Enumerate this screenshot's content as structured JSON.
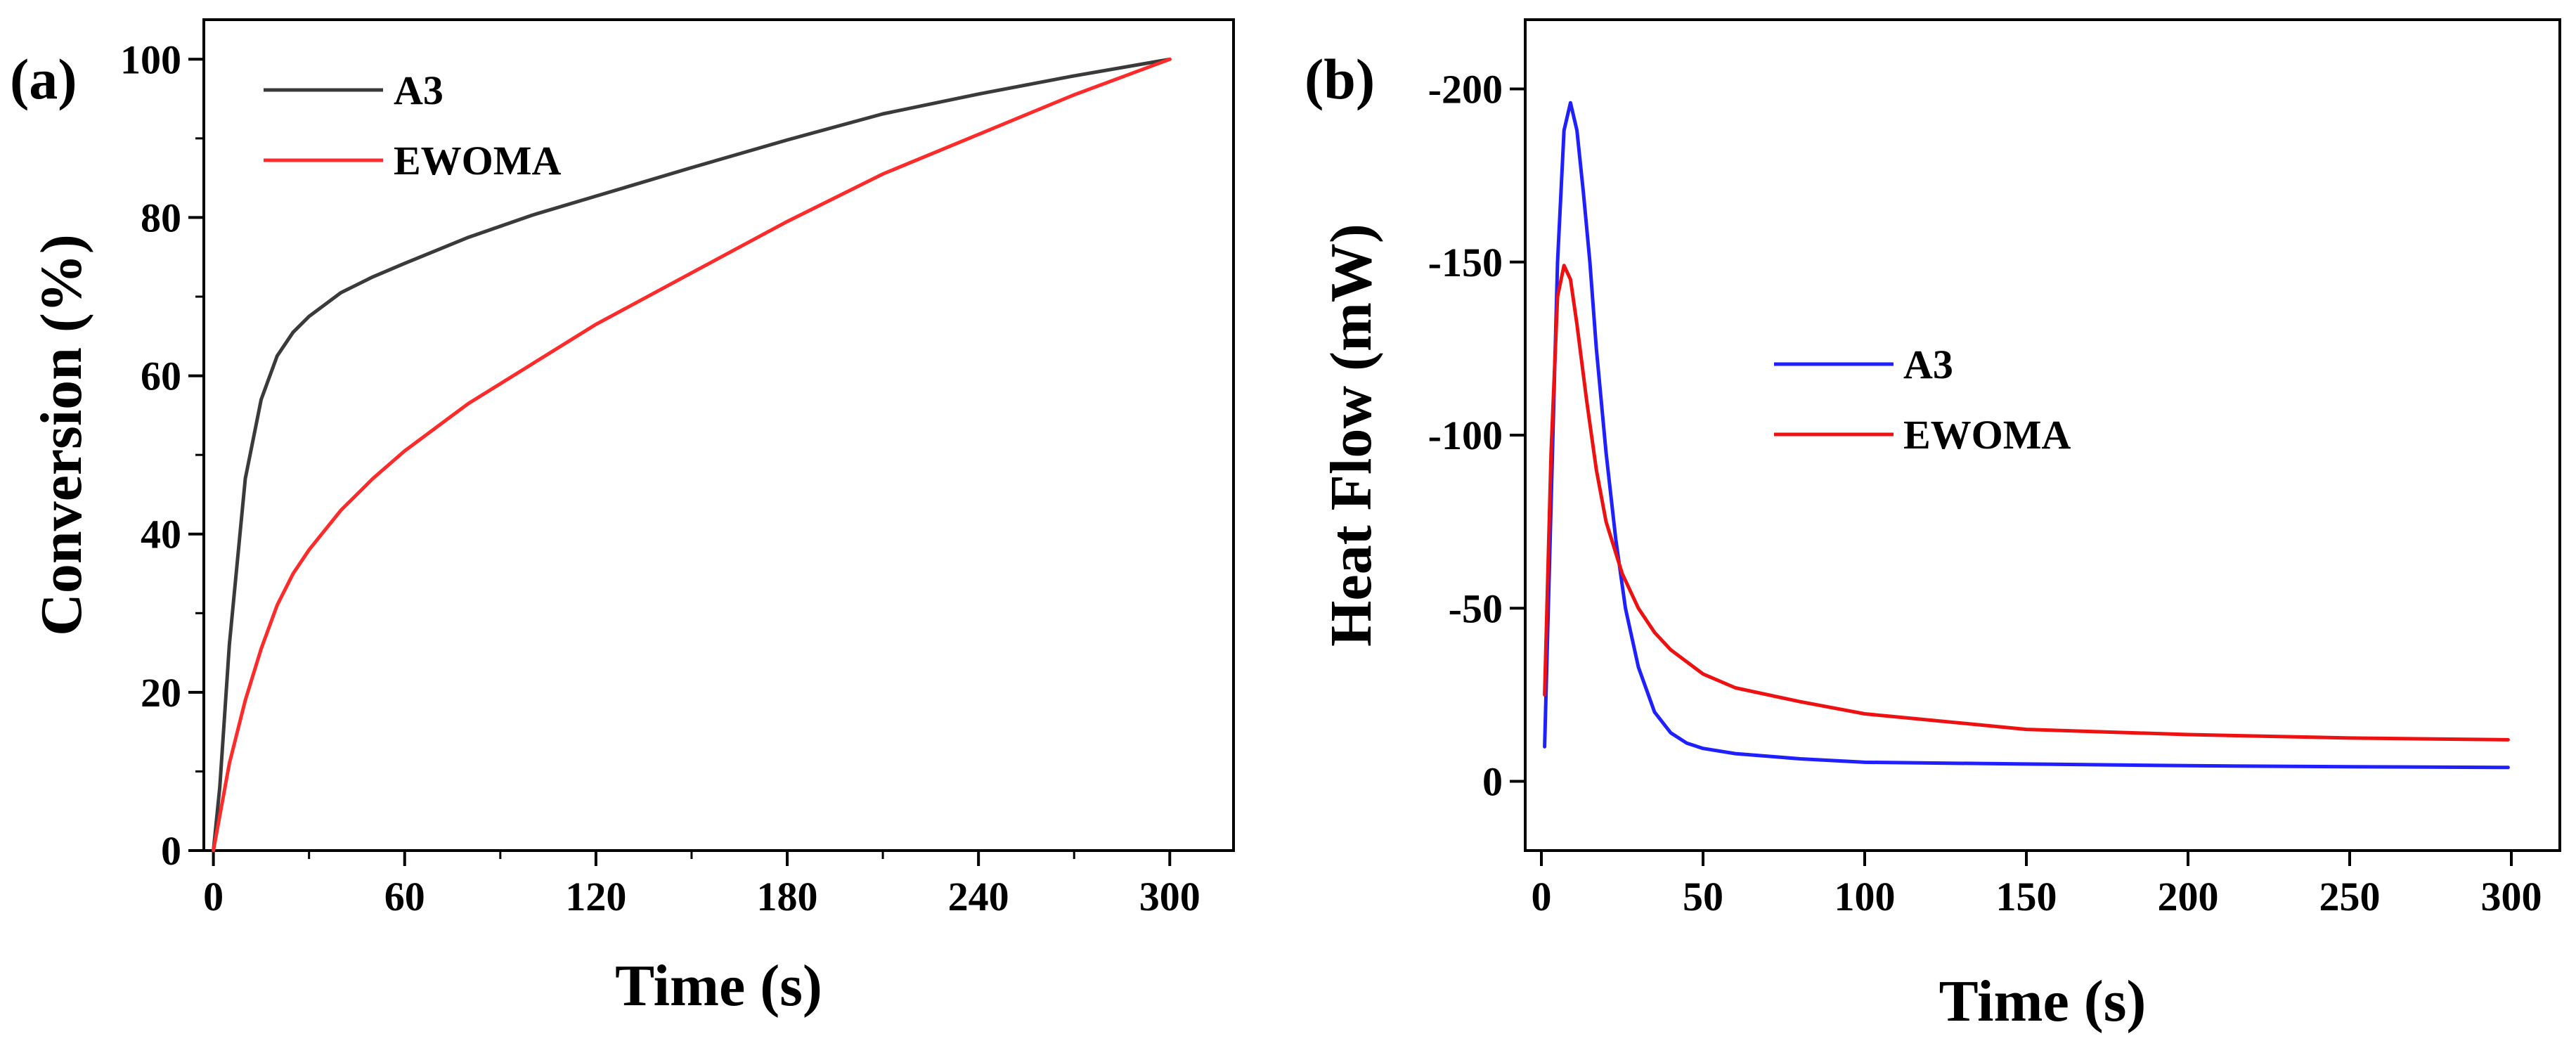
{
  "chart_data": [
    {
      "panel": "(a)",
      "type": "line",
      "xlabel": "Time (s)",
      "ylabel": "Conversion (%)",
      "xlim": [
        -3,
        320
      ],
      "ylim": [
        0,
        105
      ],
      "xticks": [
        0,
        60,
        120,
        180,
        240,
        300
      ],
      "yticks": [
        0,
        20,
        40,
        60,
        80,
        100
      ],
      "legend_position": "top-left",
      "series": [
        {
          "name": "A3",
          "color": "#3a3a3a",
          "x": [
            0,
            2,
            5,
            10,
            15,
            20,
            25,
            30,
            40,
            50,
            60,
            80,
            100,
            120,
            150,
            180,
            210,
            240,
            270,
            300
          ],
          "y": [
            0,
            8,
            26,
            47,
            57,
            62.5,
            65.5,
            67.5,
            70.5,
            72.5,
            74.2,
            77.5,
            80.3,
            82.7,
            86.3,
            89.8,
            93.1,
            95.6,
            97.9,
            100
          ]
        },
        {
          "name": "EWOMA",
          "color": "#ff2a2a",
          "x": [
            0,
            5,
            10,
            15,
            20,
            25,
            30,
            40,
            50,
            60,
            80,
            100,
            120,
            150,
            180,
            210,
            240,
            270,
            300
          ],
          "y": [
            0,
            11,
            19,
            25.5,
            31,
            35,
            38,
            43,
            47,
            50.5,
            56.5,
            61.5,
            66.5,
            73,
            79.5,
            85.5,
            90.5,
            95.5,
            100
          ]
        }
      ]
    },
    {
      "panel": "(b)",
      "type": "line",
      "xlabel": "Time (s)",
      "ylabel": "Heat Flow (mW)",
      "xlim": [
        -5,
        315
      ],
      "ylim": [
        20,
        -220
      ],
      "xticks": [
        0,
        50,
        100,
        150,
        200,
        250,
        300
      ],
      "yticks": [
        0,
        -50,
        -100,
        -150,
        -200
      ],
      "legend_position": "center",
      "series": [
        {
          "name": "A3",
          "color": "#1f1fff",
          "x": [
            1,
            3,
            5,
            7,
            9,
            11,
            13,
            15,
            17,
            20,
            23,
            26,
            30,
            35,
            40,
            45,
            50,
            60,
            80,
            100,
            150,
            200,
            250,
            299
          ],
          "y": [
            -10,
            -80,
            -150,
            -188,
            -196,
            -188,
            -170,
            -150,
            -125,
            -95,
            -70,
            -50,
            -33,
            -20,
            -14,
            -11,
            -9.5,
            -8,
            -6.5,
            -5.5,
            -5,
            -4.5,
            -4.2,
            -4
          ]
        },
        {
          "name": "EWOMA",
          "color": "#ee1111",
          "x": [
            1,
            3,
            5,
            7,
            9,
            11,
            14,
            17,
            20,
            25,
            30,
            35,
            40,
            50,
            60,
            80,
            100,
            150,
            200,
            250,
            299
          ],
          "y": [
            -25,
            -95,
            -140,
            -149,
            -145,
            -132,
            -110,
            -90,
            -75,
            -60,
            -50,
            -43,
            -38,
            -31,
            -27,
            -23,
            -19.5,
            -15,
            -13.5,
            -12.5,
            -12
          ]
        }
      ]
    }
  ]
}
